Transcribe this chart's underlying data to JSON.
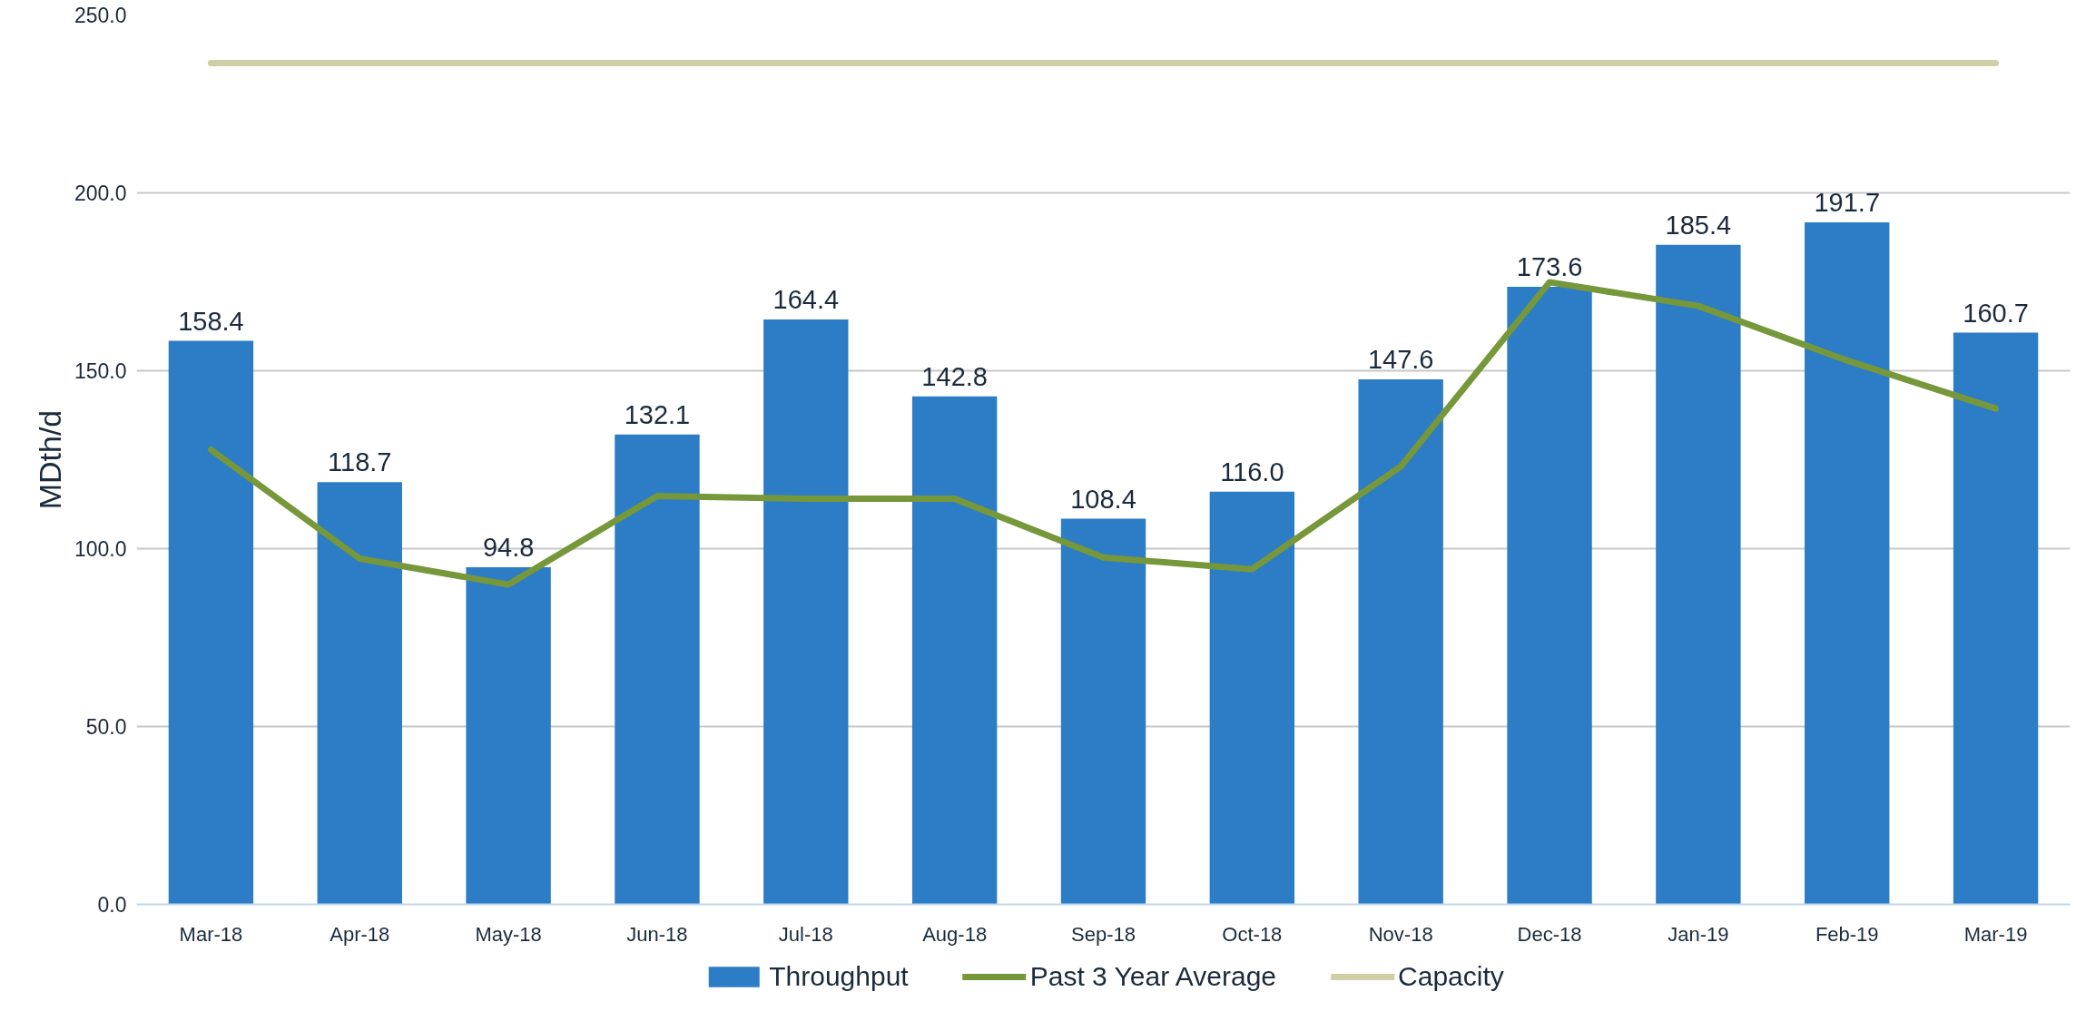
{
  "chart_data": {
    "type": "bar",
    "ylabel": "MDth/d",
    "categories": [
      "Mar-18",
      "Apr-18",
      "May-18",
      "Jun-18",
      "Jul-18",
      "Aug-18",
      "Sep-18",
      "Oct-18",
      "Nov-18",
      "Dec-18",
      "Jan-19",
      "Feb-19",
      "Mar-19"
    ],
    "series": [
      {
        "name": "Throughput",
        "color": "#2c7cc6",
        "values": [
          158.4,
          118.7,
          94.8,
          132.1,
          164.4,
          142.8,
          108.4,
          116.0,
          147.6,
          173.6,
          185.4,
          191.7,
          160.7
        ],
        "value_labels": [
          "158.4",
          "118.7",
          "94.8",
          "132.1",
          "164.4",
          "142.8",
          "108.4",
          "116.0",
          "147.6",
          "173.6",
          "185.4",
          "191.7",
          "160.7"
        ]
      },
      {
        "name": "Past 3 Year Average",
        "type": "line",
        "color": "#76983a",
        "values": [
          127.8,
          97.2,
          89.9,
          114.8,
          114.0,
          114.0,
          97.5,
          94.2,
          123.1,
          174.9,
          168.2,
          152.9,
          139.4
        ]
      },
      {
        "name": "Capacity",
        "type": "line",
        "color": "#cfcfa5",
        "values": [
          236.5,
          236.5,
          236.5,
          236.5,
          236.5,
          236.5,
          236.5,
          236.5,
          236.5,
          236.5,
          236.5,
          236.5,
          236.5
        ]
      }
    ],
    "ylim": [
      0,
      250
    ],
    "yticks": [
      {
        "value": 0,
        "label": "0.0"
      },
      {
        "value": 50,
        "label": "50.0"
      },
      {
        "value": 100,
        "label": "100.0"
      },
      {
        "value": 150,
        "label": "150.0"
      },
      {
        "value": 200,
        "label": "200.0"
      },
      {
        "value": 250,
        "label": "250.0"
      }
    ],
    "grid": "y",
    "legend": "bottom"
  }
}
